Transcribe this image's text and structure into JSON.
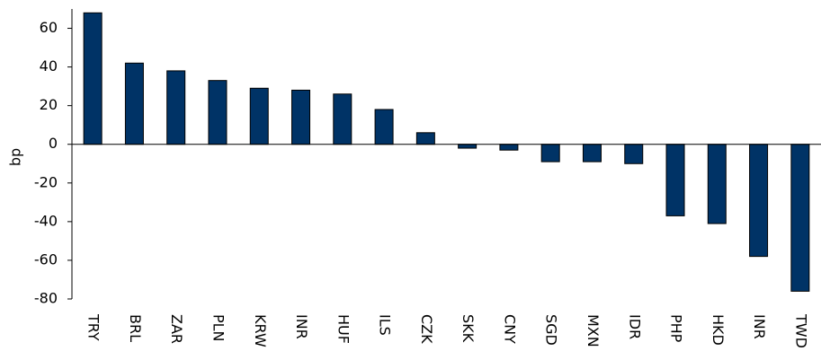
{
  "chart_data": {
    "type": "bar",
    "y_label": "bp",
    "categories": [
      "TRY",
      "BRL",
      "ZAR",
      "PLN",
      "KRW",
      "INR",
      "HUF",
      "ILS",
      "CZK",
      "SKK",
      "CNY",
      "SGD",
      "MXN",
      "IDR",
      "PHP",
      "HKD",
      "INR",
      "TWD"
    ],
    "values": [
      68,
      42,
      38,
      33,
      29,
      28,
      26,
      18,
      6,
      -2,
      -3,
      -9,
      -9,
      -10,
      -37,
      -41,
      -58,
      -76
    ],
    "color": "#003366",
    "ylim": [
      -80,
      70
    ],
    "yticks": [
      -80,
      -60,
      -40,
      -20,
      0,
      20,
      40,
      60
    ],
    "grid": false
  }
}
